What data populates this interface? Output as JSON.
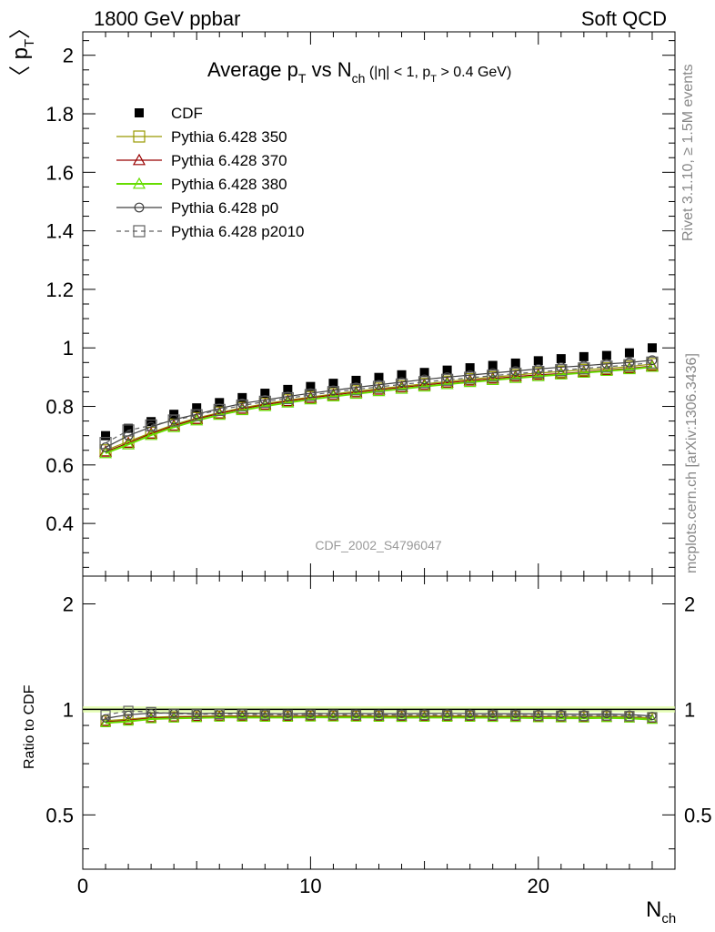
{
  "header": {
    "left": "1800 GeV ppbar",
    "right": "Soft QCD"
  },
  "side_labels": {
    "rivet": "Rivet 3.1.10, ≥ 1.5M events",
    "mcplots": "mcplots.cern.ch [arXiv:1306.3436]"
  },
  "chart_data": {
    "type": "scatter",
    "title": "Average pT vs Nch (|η| < 1, pT > 0.4 GeV)",
    "title_parts": {
      "a": "Average p",
      "a_sub": "T",
      "b": " vs N",
      "b_sub": "ch",
      "c": " (|η| < 1, p",
      "c_sub": "T",
      "d": " > 0.4 GeV)"
    },
    "ylabel_main": "〈 pT 〉",
    "ylabel_main_parts": {
      "open": "〈 p",
      "sub": "T",
      "close": "〉"
    },
    "ylabel_ratio": "Ratio to CDF",
    "xlabel": "Nch",
    "xlabel_parts": {
      "main": "N",
      "sub": "ch"
    },
    "watermark": "CDF_2002_S4796047",
    "xlim": [
      0,
      26
    ],
    "ylim_main": [
      0.22,
      2.08
    ],
    "ylim_ratio": [
      0.35,
      2.4
    ],
    "y_ratio_log": true,
    "x_ticks": [
      "0",
      "10",
      "20"
    ],
    "y_ticks_main": [
      "0.4",
      "0.6",
      "0.8",
      "1",
      "1.2",
      "1.4",
      "1.6",
      "1.8",
      "2"
    ],
    "y_ticks_ratio": [
      "0.5",
      "1",
      "2"
    ],
    "legend_position": "top-left",
    "x": [
      1,
      2,
      3,
      4,
      5,
      6,
      7,
      8,
      9,
      10,
      11,
      12,
      13,
      14,
      15,
      16,
      17,
      18,
      19,
      20,
      21,
      22,
      23,
      24,
      25
    ],
    "series": [
      {
        "name": "CDF",
        "color": "#000000",
        "marker": "filled-square",
        "line": "none",
        "values": [
          0.7,
          0.725,
          0.748,
          0.773,
          0.795,
          0.813,
          0.83,
          0.845,
          0.858,
          0.868,
          0.879,
          0.889,
          0.899,
          0.908,
          0.916,
          0.924,
          0.932,
          0.94,
          0.948,
          0.956,
          0.963,
          0.97,
          0.974,
          0.983,
          1.0
        ]
      },
      {
        "name": "Pythia 6.428 350",
        "color": "#999900",
        "marker": "open-square",
        "line": "solid",
        "values": [
          0.65,
          0.68,
          0.71,
          0.738,
          0.76,
          0.779,
          0.795,
          0.809,
          0.821,
          0.832,
          0.842,
          0.852,
          0.861,
          0.869,
          0.877,
          0.885,
          0.893,
          0.9,
          0.907,
          0.914,
          0.919,
          0.925,
          0.93,
          0.936,
          0.945
        ]
      },
      {
        "name": "Pythia 6.428 370",
        "color": "#990000",
        "marker": "open-triangle",
        "line": "solid",
        "values": [
          0.645,
          0.675,
          0.707,
          0.734,
          0.757,
          0.776,
          0.792,
          0.806,
          0.818,
          0.829,
          0.839,
          0.848,
          0.857,
          0.865,
          0.873,
          0.881,
          0.888,
          0.895,
          0.902,
          0.908,
          0.912,
          0.918,
          0.924,
          0.93,
          0.938
        ]
      },
      {
        "name": "Pythia 6.428 380",
        "color": "#66dd00",
        "marker": "open-triangle",
        "line": "solid",
        "values": [
          0.64,
          0.67,
          0.702,
          0.729,
          0.752,
          0.771,
          0.787,
          0.801,
          0.813,
          0.824,
          0.834,
          0.843,
          0.852,
          0.86,
          0.868,
          0.876,
          0.883,
          0.89,
          0.897,
          0.903,
          0.909,
          0.915,
          0.921,
          0.927,
          0.935
        ]
      },
      {
        "name": "Pythia 6.428 p0",
        "color": "#404040",
        "marker": "open-circle",
        "line": "solid",
        "values": [
          0.66,
          0.7,
          0.73,
          0.755,
          0.773,
          0.793,
          0.81,
          0.822,
          0.834,
          0.845,
          0.855,
          0.865,
          0.874,
          0.883,
          0.892,
          0.9,
          0.907,
          0.914,
          0.921,
          0.928,
          0.934,
          0.939,
          0.945,
          0.95,
          0.958
        ]
      },
      {
        "name": "Pythia 6.428 p2010",
        "color": "#606060",
        "marker": "open-square",
        "line": "dashed",
        "values": [
          0.675,
          0.718,
          0.735,
          0.752,
          0.77,
          0.788,
          0.803,
          0.816,
          0.828,
          0.839,
          0.849,
          0.858,
          0.867,
          0.875,
          0.883,
          0.891,
          0.898,
          0.905,
          0.912,
          0.918,
          0.924,
          0.93,
          0.936,
          0.941,
          0.95
        ]
      }
    ]
  }
}
